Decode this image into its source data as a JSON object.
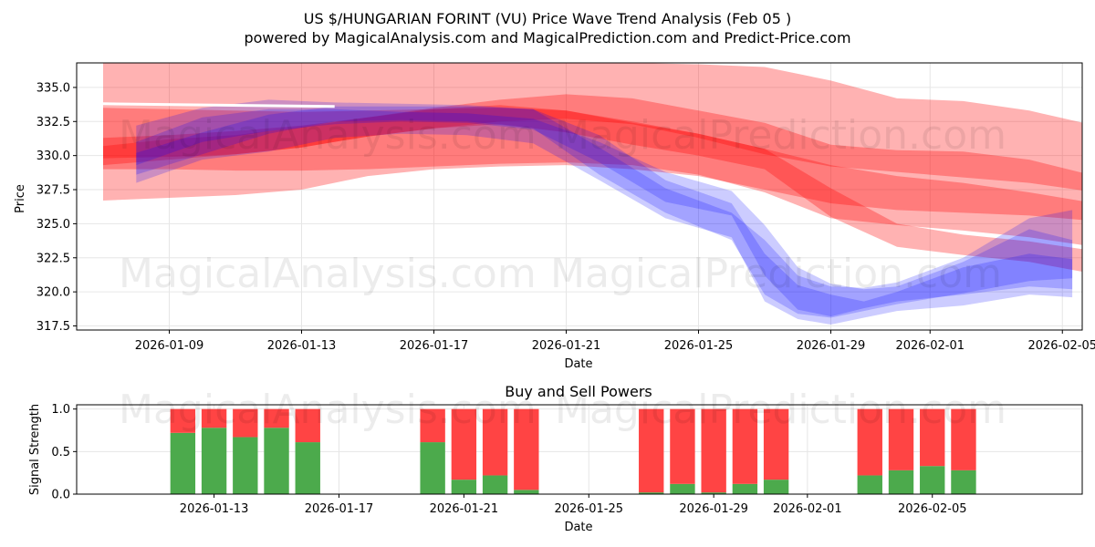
{
  "titles": {
    "main": "US $/HUNGARIAN FORINT (VU) Price Wave Trend Analysis (Feb 05 )",
    "sub": "powered by MagicalAnalysis.com and MagicalPrediction.com and Predict-Price.com"
  },
  "watermarks": {
    "top_left": "MagicalAnalysis.com",
    "top_right": "MagicalPrediction.com",
    "mid_left": "MagicalAnalysis.com",
    "mid_right": "MagicalPrediction.com",
    "low_left": "MagicalAnalysis.com",
    "low_right": "MagicalPrediction.com"
  },
  "colors": {
    "red": "#ff0000",
    "blue": "#0000ff",
    "buy": "#4caa4c",
    "sell": "#ff4444",
    "grid": "#e6e6e6"
  },
  "chart_data": [
    {
      "type": "area",
      "title": "",
      "xlabel": "Date",
      "ylabel": "Price",
      "xlim_days": [
        -1.8,
        28.6
      ],
      "ylim": [
        317.2,
        336.8
      ],
      "x_tick_days": [
        1,
        5,
        9,
        13,
        17,
        21,
        24,
        28
      ],
      "x_tick_labels": [
        "2026-01-09",
        "2026-01-13",
        "2026-01-17",
        "2026-01-21",
        "2026-01-25",
        "2026-01-29",
        "2026-02-01",
        "2026-02-05"
      ],
      "y_ticks": [
        317.5,
        320.0,
        322.5,
        325.0,
        327.5,
        330.0,
        332.5,
        335.0
      ],
      "y_tick_labels": [
        "317.5",
        "320.0",
        "322.5",
        "325.0",
        "327.5",
        "330.0",
        "332.5",
        "335.0"
      ],
      "series": [
        {
          "name": "red band outer",
          "color": "red",
          "opacity": 0.3,
          "x": [
            -1,
            1,
            3,
            5,
            7,
            9,
            11,
            13,
            15,
            17,
            19,
            21,
            23,
            25,
            27,
            29
          ],
          "upper": [
            336.8,
            336.8,
            336.8,
            336.8,
            336.8,
            336.8,
            336.8,
            336.8,
            336.8,
            336.7,
            336.5,
            335.5,
            334.2,
            334,
            333.3,
            332.2
          ],
          "lower": [
            326.7,
            326.9,
            327.1,
            327.5,
            328.5,
            329,
            329.2,
            329.3,
            329,
            328.5,
            327.5,
            326.5,
            326,
            325.8,
            325.6,
            325.2
          ]
        },
        {
          "name": "red band 2",
          "color": "red",
          "opacity": 0.3,
          "x": [
            -1,
            1,
            3,
            5,
            7,
            9,
            11,
            13,
            15,
            17,
            19,
            21,
            23,
            25,
            27,
            29
          ],
          "upper": [
            333.5,
            333.4,
            333.3,
            333.2,
            333.3,
            333.4,
            333.5,
            333.3,
            332.5,
            331.6,
            330.5,
            329.3,
            328.5,
            328,
            327.3,
            326.5
          ],
          "lower": [
            329,
            329,
            328.9,
            328.9,
            329,
            329.2,
            329.4,
            329.5,
            329.3,
            328.6,
            327.3,
            325.4,
            324.9,
            324.5,
            324,
            323.3
          ]
        },
        {
          "name": "red band 3",
          "color": "red",
          "opacity": 0.3,
          "x": [
            -1,
            1,
            3,
            5,
            7,
            9,
            11,
            13,
            15,
            17,
            19,
            21,
            23,
            25,
            27,
            29
          ],
          "upper": [
            331.3,
            331.5,
            331.8,
            332.2,
            332.8,
            333.5,
            334.1,
            334.5,
            334.2,
            333.3,
            332.4,
            330.8,
            330.4,
            330.3,
            329.7,
            328.5
          ],
          "lower": [
            329.8,
            329.9,
            330.1,
            330.6,
            331.4,
            332,
            332.5,
            332.7,
            332.3,
            331.3,
            330.1,
            329.2,
            328.8,
            328.4,
            328,
            327.3
          ]
        },
        {
          "name": "red band 4",
          "color": "red",
          "opacity": 0.3,
          "x": [
            -1,
            1,
            3,
            5,
            7,
            9,
            11,
            13,
            15,
            17,
            19,
            21,
            23,
            25,
            27,
            29
          ],
          "upper": [
            330.7,
            331.2,
            331.5,
            332.1,
            332.8,
            333.4,
            333.7,
            333.3,
            332.4,
            331.6,
            330.5,
            327.6,
            325,
            324.2,
            323.7,
            323
          ],
          "lower": [
            329.3,
            329.7,
            330.1,
            330.6,
            331.4,
            332,
            332.3,
            331.7,
            330.8,
            330,
            329,
            325.5,
            323.3,
            322.7,
            322.2,
            321.3
          ]
        },
        {
          "name": "blue band 1",
          "color": "blue",
          "opacity": 0.2,
          "x": [
            0,
            2,
            4,
            6,
            8,
            10,
            12,
            14,
            16,
            18,
            19,
            20,
            21,
            22,
            23,
            25,
            27,
            28.3
          ],
          "upper": [
            332.2,
            333.5,
            334.1,
            333.9,
            333.8,
            333.7,
            333.4,
            331.5,
            328.2,
            326.5,
            322.8,
            320.5,
            319.8,
            319.3,
            320,
            321.8,
            322.8,
            322.4
          ],
          "lower": [
            328,
            329.7,
            330.3,
            331.3,
            331.6,
            331.5,
            330.9,
            328.2,
            325.4,
            324,
            319.3,
            318,
            317.6,
            318.1,
            318.6,
            319,
            319.8,
            319.6
          ]
        },
        {
          "name": "blue band 2",
          "color": "blue",
          "opacity": 0.2,
          "x": [
            0,
            2,
            4,
            6,
            8,
            10,
            12,
            14,
            16,
            18,
            19,
            20,
            21,
            22,
            23,
            25,
            27,
            28.3
          ],
          "upper": [
            331,
            332.8,
            333.4,
            333.4,
            333.2,
            333.1,
            332.7,
            331,
            328.8,
            327.4,
            324.9,
            321.8,
            320.6,
            320.2,
            320.4,
            322.2,
            324.6,
            323.8
          ],
          "lower": [
            329.3,
            331,
            331.8,
            332.3,
            332.5,
            332.4,
            331.9,
            329.5,
            326.6,
            325.6,
            321.2,
            318.7,
            318.2,
            318.8,
            319.3,
            319.8,
            320.4,
            320.2
          ]
        },
        {
          "name": "blue band 3",
          "color": "blue",
          "opacity": 0.2,
          "x": [
            0,
            2,
            4,
            6,
            8,
            10,
            12,
            14,
            16,
            18,
            19,
            20,
            21,
            22,
            23,
            25,
            27,
            28.3
          ],
          "upper": [
            330.2,
            331.7,
            333,
            333.6,
            333.6,
            333.6,
            333.4,
            330.6,
            327.6,
            325.8,
            323.8,
            321.2,
            320.4,
            320.3,
            320.7,
            322.5,
            325.4,
            326
          ],
          "lower": [
            328.6,
            330.1,
            331.6,
            332.5,
            332.6,
            332.5,
            332,
            328.6,
            325.8,
            323.8,
            319.8,
            318.4,
            318.1,
            318.6,
            319.1,
            319.9,
            320.8,
            321
          ]
        }
      ],
      "lines": [
        {
          "name": "white line",
          "color": "white",
          "x": [
            -1,
            6
          ],
          "y": [
            333.8,
            333.6
          ]
        }
      ]
    },
    {
      "type": "bar",
      "title": "Buy and Sell Powers",
      "xlabel": "Date",
      "ylabel": "Signal Strength",
      "xlim_days": [
        -3.4,
        28.8
      ],
      "ylim": [
        0,
        1.05
      ],
      "y_ticks": [
        0.0,
        0.5,
        1.0
      ],
      "y_tick_labels": [
        "0.0",
        "0.5",
        "1.0"
      ],
      "x_tick_days": [
        1,
        5,
        9,
        13,
        17,
        21,
        24,
        28
      ],
      "x_tick_labels": [
        "2026-01-13",
        "2026-01-17",
        "2026-01-21",
        "2026-01-25",
        "2026-01-29",
        "2026-02-01",
        "2026-02-05"
      ],
      "x_tick_label_days": [
        1,
        5,
        9,
        13,
        17,
        20,
        24
      ],
      "bars_days": [
        0,
        1,
        2,
        3,
        4,
        8,
        9,
        10,
        11,
        15,
        16,
        17,
        18,
        19,
        22,
        23,
        24,
        25
      ],
      "buy": [
        0.72,
        0.78,
        0.67,
        0.78,
        0.61,
        0.61,
        0.17,
        0.22,
        0.05,
        0.02,
        0.12,
        0.02,
        0.12,
        0.17,
        0.22,
        0.28,
        0.33,
        0.28
      ],
      "sell": [
        0.28,
        0.22,
        0.33,
        0.22,
        0.39,
        0.39,
        0.83,
        0.78,
        0.95,
        0.98,
        0.88,
        0.98,
        0.88,
        0.83,
        0.78,
        0.72,
        0.67,
        0.72
      ]
    }
  ]
}
